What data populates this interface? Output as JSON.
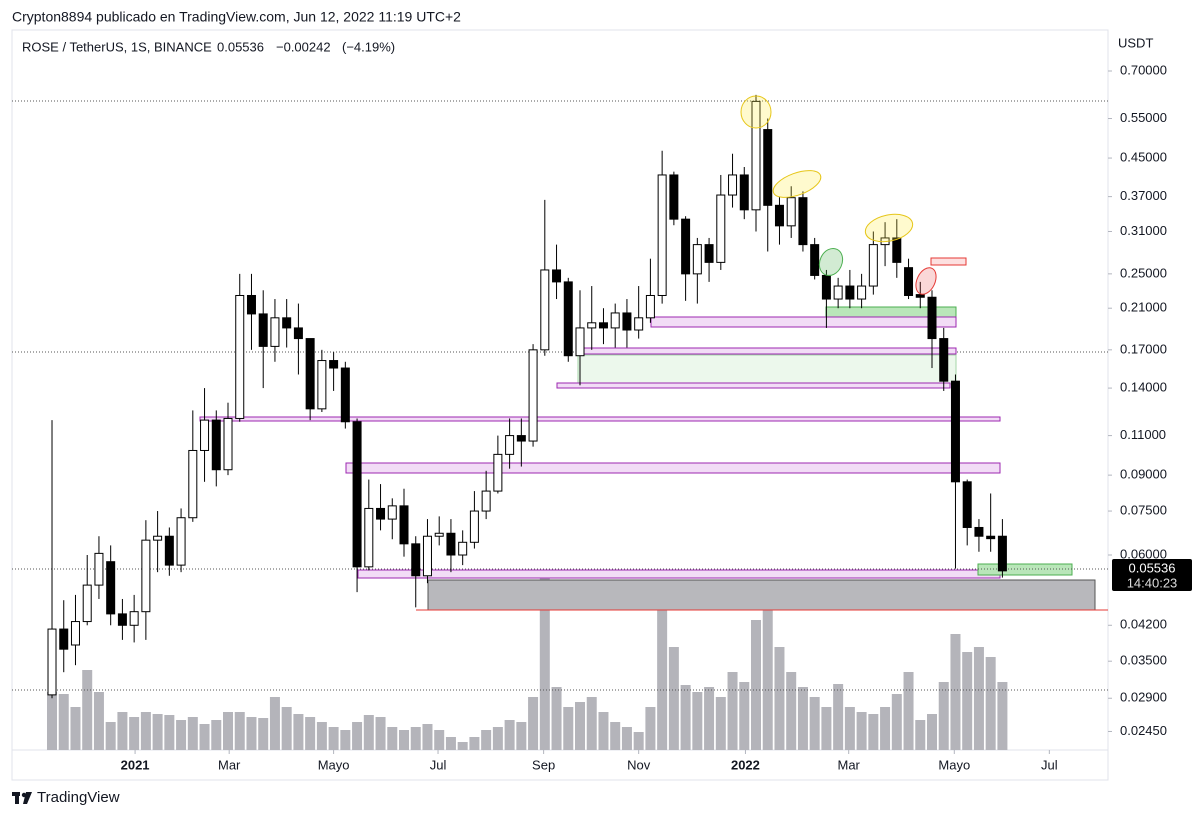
{
  "header": {
    "byline": "Crypton8894 publicado en TradingView.com, Jun 12, 2022 11:19 UTC+2",
    "symbol": "ROSE / TetherUS, 1S, BINANCE",
    "price": 0.05536,
    "change": {
      "value": -0.00242,
      "label": "−0.00242"
    },
    "change_pct": {
      "value": -4.19,
      "label": "(−4.19%)"
    },
    "currency": "USDT",
    "countdown": "14:40:23",
    "brand": "TradingView"
  },
  "chart_data": {
    "type": "candlestick",
    "log_scale": true,
    "grid": false,
    "up_color": "#ffffff",
    "down_color": "#000000",
    "outline_color": "#000000",
    "ylim": [
      0.0223,
      0.862
    ],
    "yticks": [
      {
        "value": 0.7,
        "label": "0.70000"
      },
      {
        "value": 0.55,
        "label": "0.55000"
      },
      {
        "value": 0.45,
        "label": "0.45000"
      },
      {
        "value": 0.37,
        "label": "0.37000"
      },
      {
        "value": 0.31,
        "label": "0.31000"
      },
      {
        "value": 0.25,
        "label": "0.25000"
      },
      {
        "value": 0.21,
        "label": "0.21000"
      },
      {
        "value": 0.17,
        "label": "0.17000"
      },
      {
        "value": 0.14,
        "label": "0.14000"
      },
      {
        "value": 0.11,
        "label": "0.11000"
      },
      {
        "value": 0.09,
        "label": "0.09000"
      },
      {
        "value": 0.075,
        "label": "0.07500"
      },
      {
        "value": 0.06,
        "label": "0.06000"
      },
      {
        "value": 0.042,
        "label": "0.04200"
      },
      {
        "value": 0.035,
        "label": "0.03500"
      },
      {
        "value": 0.029,
        "label": "0.02900"
      },
      {
        "value": 0.0245,
        "label": "0.02450"
      }
    ],
    "xlim": [
      -3.41,
      90.0
    ],
    "xticks": [
      {
        "value": 7.08,
        "label": "2021"
      },
      {
        "value": 15.1,
        "label": "Mar"
      },
      {
        "value": 24.0,
        "label": "Mayo"
      },
      {
        "value": 32.9,
        "label": "Jul"
      },
      {
        "value": 41.9,
        "label": "Sep"
      },
      {
        "value": 50.0,
        "label": "Nov"
      },
      {
        "value": 59.1,
        "label": "2022"
      },
      {
        "value": 67.9,
        "label": "Mar"
      },
      {
        "value": 76.9,
        "label": "Mayo"
      },
      {
        "value": 85.0,
        "label": "Jul"
      }
    ],
    "open": [
      0.0295,
      0.0412,
      0.038,
      0.0428,
      0.0515,
      0.058,
      0.0445,
      0.042,
      0.045,
      0.0647,
      0.066,
      0.057,
      0.0725,
      0.102,
      0.119,
      0.0925,
      0.12,
      0.224,
      0.204,
      0.173,
      0.2,
      0.19,
      0.18,
      0.126,
      0.161,
      0.155,
      0.118,
      0.0565,
      0.076,
      0.072,
      0.077,
      0.0635,
      0.054,
      0.066,
      0.067,
      0.06,
      0.064,
      0.075,
      0.083,
      0.1,
      0.11,
      0.107,
      0.17,
      0.255,
      0.24,
      0.165,
      0.19,
      0.195,
      0.19,
      0.205,
      0.188,
      0.2,
      0.224,
      0.413,
      0.33,
      0.25,
      0.29,
      0.265,
      0.373,
      0.413,
      0.346,
      0.52,
      0.354,
      0.319,
      0.368,
      0.29,
      0.248,
      0.22,
      0.235,
      0.22,
      0.235,
      0.29,
      0.3,
      0.258,
      0.225,
      0.222,
      0.18,
      0.145,
      0.087,
      0.069,
      0.066,
      0.066
    ],
    "high": [
      0.119,
      0.0477,
      0.049,
      0.06,
      0.066,
      0.063,
      0.048,
      0.049,
      0.0716,
      0.075,
      0.069,
      0.076,
      0.125,
      0.14,
      0.125,
      0.13,
      0.25,
      0.25,
      0.23,
      0.22,
      0.22,
      0.215,
      0.18,
      0.17,
      0.168,
      0.16,
      0.12,
      0.088,
      0.086,
      0.08,
      0.084,
      0.066,
      0.072,
      0.073,
      0.072,
      0.068,
      0.083,
      0.092,
      0.11,
      0.12,
      0.12,
      0.175,
      0.364,
      0.29,
      0.245,
      0.23,
      0.235,
      0.21,
      0.215,
      0.22,
      0.235,
      0.27,
      0.467,
      0.42,
      0.335,
      0.3,
      0.3,
      0.413,
      0.46,
      0.43,
      0.62,
      0.55,
      0.37,
      0.39,
      0.38,
      0.3,
      0.255,
      0.245,
      0.255,
      0.25,
      0.31,
      0.325,
      0.33,
      0.27,
      0.24,
      0.23,
      0.19,
      0.15,
      0.088,
      0.072,
      0.082,
      0.072
    ],
    "low": [
      0.029,
      0.0331,
      0.0343,
      0.042,
      0.048,
      0.042,
      0.039,
      0.0385,
      0.039,
      0.055,
      0.054,
      0.055,
      0.071,
      0.087,
      0.085,
      0.09,
      0.118,
      0.17,
      0.14,
      0.16,
      0.172,
      0.15,
      0.119,
      0.124,
      0.138,
      0.114,
      0.0497,
      0.0555,
      0.068,
      0.065,
      0.0595,
      0.046,
      0.052,
      0.063,
      0.055,
      0.057,
      0.062,
      0.072,
      0.082,
      0.093,
      0.094,
      0.104,
      0.165,
      0.22,
      0.16,
      0.142,
      0.17,
      0.175,
      0.172,
      0.172,
      0.18,
      0.195,
      0.215,
      0.32,
      0.218,
      0.215,
      0.24,
      0.255,
      0.35,
      0.33,
      0.31,
      0.28,
      0.29,
      0.3,
      0.28,
      0.243,
      0.19,
      0.21,
      0.21,
      0.21,
      0.225,
      0.26,
      0.245,
      0.22,
      0.21,
      0.155,
      0.138,
      0.056,
      0.063,
      0.061,
      0.061,
      0.0535
    ],
    "close": [
      0.0412,
      0.0372,
      0.0428,
      0.0515,
      0.0605,
      0.0445,
      0.042,
      0.045,
      0.0647,
      0.066,
      0.057,
      0.0725,
      0.102,
      0.119,
      0.0925,
      0.12,
      0.224,
      0.204,
      0.173,
      0.2,
      0.19,
      0.18,
      0.126,
      0.161,
      0.155,
      0.118,
      0.0565,
      0.076,
      0.072,
      0.077,
      0.0635,
      0.054,
      0.066,
      0.067,
      0.06,
      0.064,
      0.075,
      0.083,
      0.1,
      0.11,
      0.107,
      0.17,
      0.255,
      0.24,
      0.165,
      0.19,
      0.195,
      0.19,
      0.205,
      0.188,
      0.2,
      0.224,
      0.413,
      0.33,
      0.25,
      0.29,
      0.265,
      0.373,
      0.413,
      0.346,
      0.6,
      0.354,
      0.319,
      0.368,
      0.29,
      0.248,
      0.22,
      0.235,
      0.22,
      0.235,
      0.29,
      0.3,
      0.265,
      0.224,
      0.222,
      0.18,
      0.145,
      0.087,
      0.069,
      0.066,
      0.0652,
      0.05536
    ],
    "volume": {
      "color": "#b4b4ba",
      "ylim": [
        0,
        720
      ],
      "values": [
        58,
        56,
        43,
        80,
        58,
        28,
        38,
        33,
        38,
        36,
        35,
        30,
        33,
        26,
        30,
        38,
        38,
        33,
        32,
        53,
        43,
        36,
        33,
        28,
        23,
        20,
        28,
        35,
        33,
        23,
        20,
        23,
        26,
        20,
        13,
        8,
        13,
        20,
        23,
        30,
        28,
        53,
        178,
        63,
        43,
        48,
        53,
        38,
        28,
        23,
        18,
        43,
        150,
        103,
        65,
        58,
        63,
        53,
        78,
        68,
        130,
        143,
        103,
        78,
        63,
        53,
        43,
        66,
        43,
        38,
        36,
        43,
        56,
        78,
        30,
        36,
        68,
        116,
        98,
        103,
        93,
        68
      ]
    }
  }
}
